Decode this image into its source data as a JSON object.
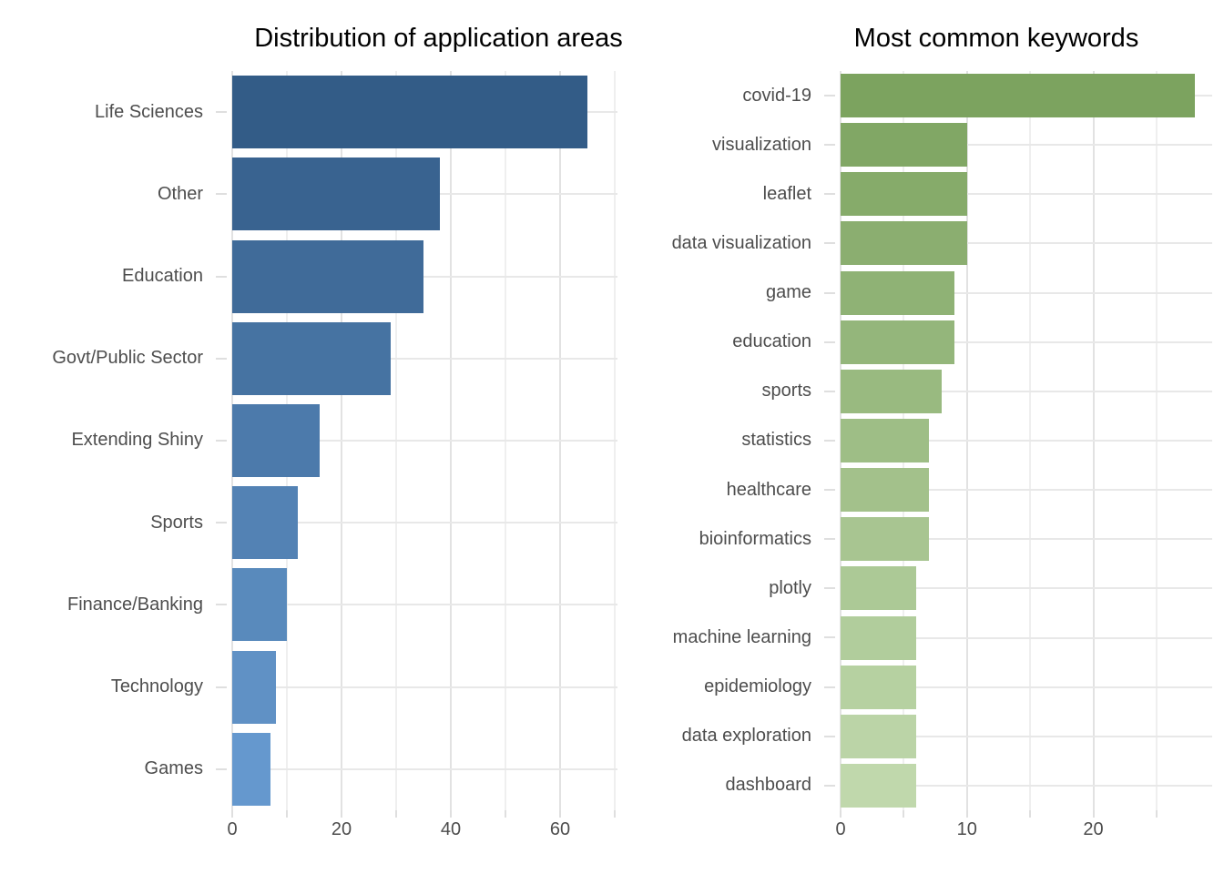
{
  "chart_data": [
    {
      "type": "bar",
      "orientation": "horizontal",
      "title": "Distribution of application areas",
      "categories": [
        "Life Sciences",
        "Other",
        "Education",
        "Govt/Public Sector",
        "Extending Shiny",
        "Sports",
        "Finance/Banking",
        "Technology",
        "Games"
      ],
      "values": [
        65,
        38,
        35,
        29,
        16,
        12,
        10,
        8,
        7
      ],
      "xlabel": "",
      "ylabel": "",
      "xlim": [
        0,
        70.5
      ],
      "x_major_ticks": [
        0,
        20,
        40,
        60
      ],
      "x_minor_ticks": [
        10,
        30,
        50,
        70
      ],
      "grid": "on",
      "legend": "none",
      "bar_colors": [
        "#335C87",
        "#396390",
        "#406B99",
        "#4673A2",
        "#4C7AAB",
        "#5382B4",
        "#598ABC",
        "#6091C5",
        "#6598CE"
      ]
    },
    {
      "type": "bar",
      "orientation": "horizontal",
      "title": "Most common keywords",
      "categories": [
        "covid-19",
        "visualization",
        "leaflet",
        "data visualization",
        "game",
        "education",
        "sports",
        "statistics",
        "healthcare",
        "bioinformatics",
        "plotly",
        "machine learning",
        "epidemiology",
        "data exploration",
        "dashboard"
      ],
      "values": [
        28,
        10,
        10,
        10,
        9,
        9,
        8,
        7,
        7,
        7,
        6,
        6,
        6,
        6,
        6
      ],
      "xlabel": "",
      "ylabel": "",
      "xlim": [
        0,
        29.4
      ],
      "x_major_ticks": [
        0,
        10,
        20
      ],
      "x_minor_ticks": [
        5,
        15,
        25
      ],
      "grid": "on",
      "legend": "none",
      "bar_colors": [
        "#7CA35F",
        "#81A765",
        "#86AB6A",
        "#8BAE70",
        "#8FB275",
        "#94B67B",
        "#99BA80",
        "#9EBE86",
        "#A3C18B",
        "#A8C591",
        "#ACC996",
        "#B1CD9C",
        "#B6D1A1",
        "#BBD4A7",
        "#C0D8AC"
      ]
    }
  ],
  "styles": {
    "background": "#FFFFFF",
    "grid_major_color": "#E2E2E2",
    "grid_minor_color": "#EFEFEF",
    "grid_category_color": "#E8E8E8",
    "axis_tick_color": "#DFDFDF",
    "text_color": "#4D4D4D",
    "title_color": "#000000"
  }
}
